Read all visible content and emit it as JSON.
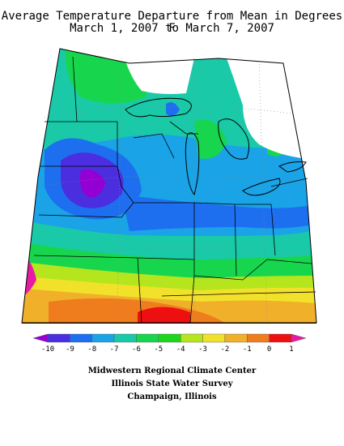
{
  "title_line1": "Average Temperature Departure from Mean in Degrees F",
  "title_line2": "March 1, 2007 to March 7, 2007",
  "legend": {
    "tick_labels": [
      "-10",
      "-9",
      "-8",
      "-7",
      "-6",
      "-5",
      "-4",
      "-3",
      "-2",
      "-1",
      "0",
      "1"
    ],
    "colors": [
      "#9400d3",
      "#4a2ee0",
      "#1e6ff0",
      "#1aa3e6",
      "#19c9a8",
      "#17d64e",
      "#1ed61e",
      "#b5e61d",
      "#f2e12a",
      "#f0b02a",
      "#ef7d1e",
      "#ee1010",
      "#e61aa6"
    ]
  },
  "credits": {
    "line1": "Midwestern Regional Climate Center",
    "line2": "Illinois State Water Survey",
    "line3": "Champaign, Illinois"
  }
}
